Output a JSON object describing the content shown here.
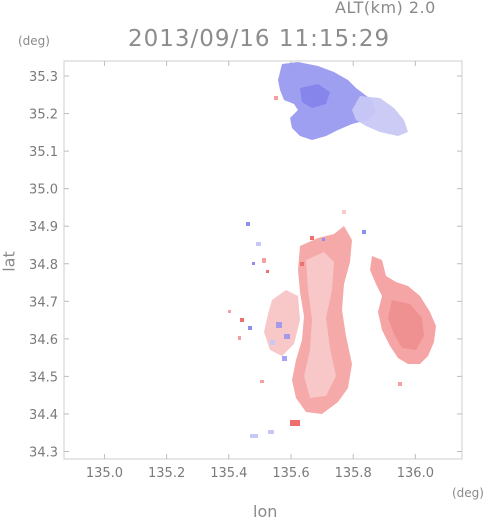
{
  "header": {
    "altitude_label": "ALT(km) 2.0",
    "timestamp": "2013/09/16 11:15:29"
  },
  "axes": {
    "y_unit": "(deg)",
    "x_unit": "(deg)",
    "y_title": "lat",
    "x_title": "lon",
    "x_ticks": [
      "135.0",
      "135.2",
      "135.4",
      "135.6",
      "135.8",
      "136.0"
    ],
    "y_ticks": [
      "35.3",
      "35.2",
      "35.1",
      "35.0",
      "34.9",
      "34.8",
      "34.7",
      "34.6",
      "34.5",
      "34.4",
      "34.3"
    ],
    "x_range": [
      134.87,
      136.15
    ],
    "y_range": [
      34.28,
      35.34
    ]
  },
  "colors": {
    "frame": "#cfcfcf",
    "approaching": "#8e8ef0",
    "approaching_light": "#c8c8f6",
    "receding": "#f4a0a0",
    "receding_light": "#f8caca",
    "receding_strong": "#ee6f6f"
  }
}
